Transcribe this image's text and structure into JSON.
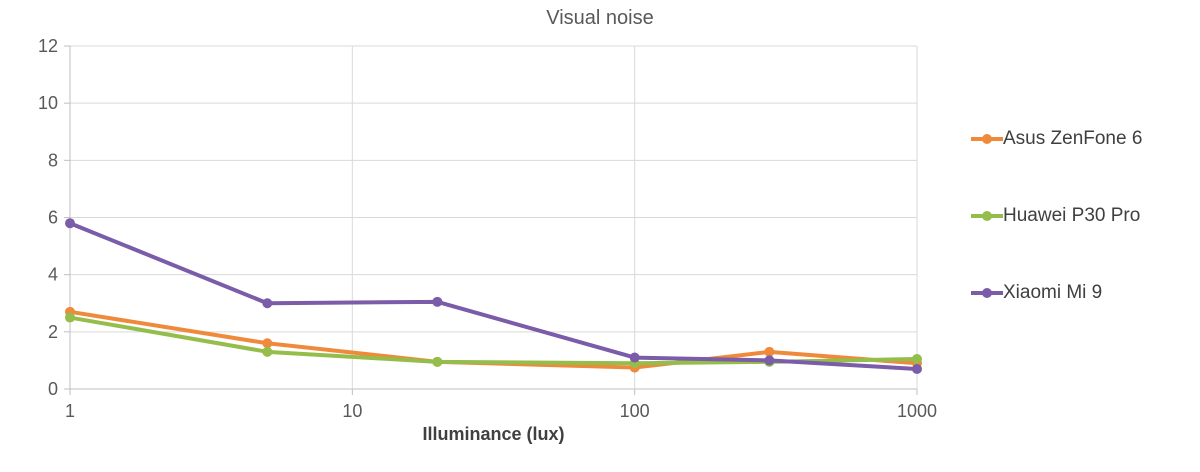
{
  "chart_data": {
    "type": "line",
    "title": "Visual noise",
    "xlabel": "Illuminance (lux)",
    "ylabel": "",
    "x_scale": "log",
    "grid": true,
    "legend_position": "right",
    "xlim": [
      1,
      1000
    ],
    "ylim": [
      0,
      12
    ],
    "x_ticks": [
      1,
      10,
      100,
      1000
    ],
    "y_ticks": [
      0,
      2,
      4,
      6,
      8,
      10,
      12
    ],
    "x": [
      1,
      5,
      20,
      100,
      300,
      1000
    ],
    "series": [
      {
        "name": "Asus ZenFone 6",
        "color": "#EF8A3C",
        "values": [
          2.7,
          1.6,
          0.95,
          0.75,
          1.3,
          0.9
        ]
      },
      {
        "name": "Huawei P30 Pro",
        "color": "#94BD4B",
        "values": [
          2.5,
          1.3,
          0.95,
          0.9,
          0.95,
          1.05
        ]
      },
      {
        "name": "Xiaomi Mi 9",
        "color": "#7A5CA8",
        "values": [
          5.8,
          3.0,
          3.05,
          1.1,
          1.0,
          0.7
        ]
      }
    ]
  },
  "colors": {
    "background": "#FFFFFF",
    "grid": "#D9D9D9",
    "axis": "#BFBFBF",
    "tick_text": "#595959",
    "title_text": "#595959",
    "axis_label_text": "#404040",
    "legend_text": "#3F3F3F"
  }
}
